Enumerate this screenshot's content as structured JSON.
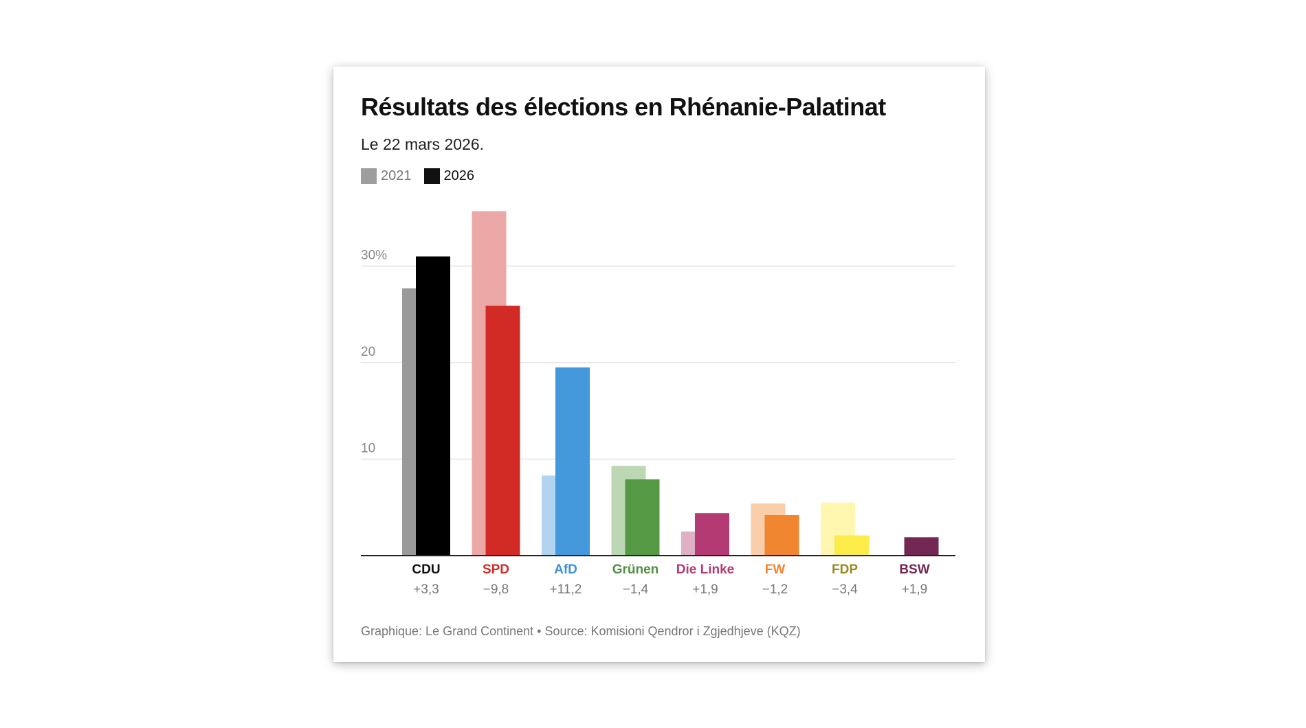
{
  "title": "Résultats des élections en Rhénanie-Palatinat",
  "subtitle": "Le 22 mars 2026.",
  "legend": {
    "old_label": "2021",
    "new_label": "2026",
    "old_color": "#9e9e9e",
    "new_color": "#111111"
  },
  "source": "Graphique: Le Grand Continent • Source: Komisioni Qendror i Zgjedhjeve (KQZ)",
  "chart_data": {
    "type": "bar",
    "title": "Résultats des élections en Rhénanie-Palatinat",
    "subtitle": "Le 22 mars 2026.",
    "ylabel": "",
    "xlabel": "",
    "ylim": [
      0,
      36
    ],
    "yticks": [
      {
        "value": 10,
        "label": "10"
      },
      {
        "value": 20,
        "label": "20"
      },
      {
        "value": 30,
        "label": "30%"
      }
    ],
    "grid": true,
    "legend_position": "top-left",
    "categories": [
      "CDU",
      "SPD",
      "AfD",
      "Grünen",
      "Die Linke",
      "FW",
      "FDP",
      "BSW"
    ],
    "series": [
      {
        "name": "2021",
        "values": [
          27.7,
          35.7,
          8.3,
          9.3,
          2.5,
          5.4,
          5.5,
          0
        ]
      },
      {
        "name": "2026",
        "values": [
          31.0,
          25.9,
          19.5,
          7.9,
          4.4,
          4.2,
          2.1,
          1.9
        ]
      }
    ],
    "changes": [
      "+3,3",
      "−9,8",
      "+11,2",
      "−1,4",
      "+1,9",
      "−1,2",
      "−3,4",
      "+1,9"
    ],
    "colors_new": [
      "#000000",
      "#d22b26",
      "#4399dc",
      "#569945",
      "#b43a74",
      "#f08630",
      "#fcec4a",
      "#722852"
    ],
    "colors_old": [
      "#999999",
      "#eba8a7",
      "#b2d4f0",
      "#bbd7b3",
      "#e0b0c6",
      "#f9cea8",
      "#fff6b0",
      "#c9a9b9"
    ],
    "label_colors": [
      "#111111",
      "#d22b26",
      "#3f8fd2",
      "#4f8f3f",
      "#b43a74",
      "#f08630",
      "#9a8a1e",
      "#722852"
    ]
  }
}
